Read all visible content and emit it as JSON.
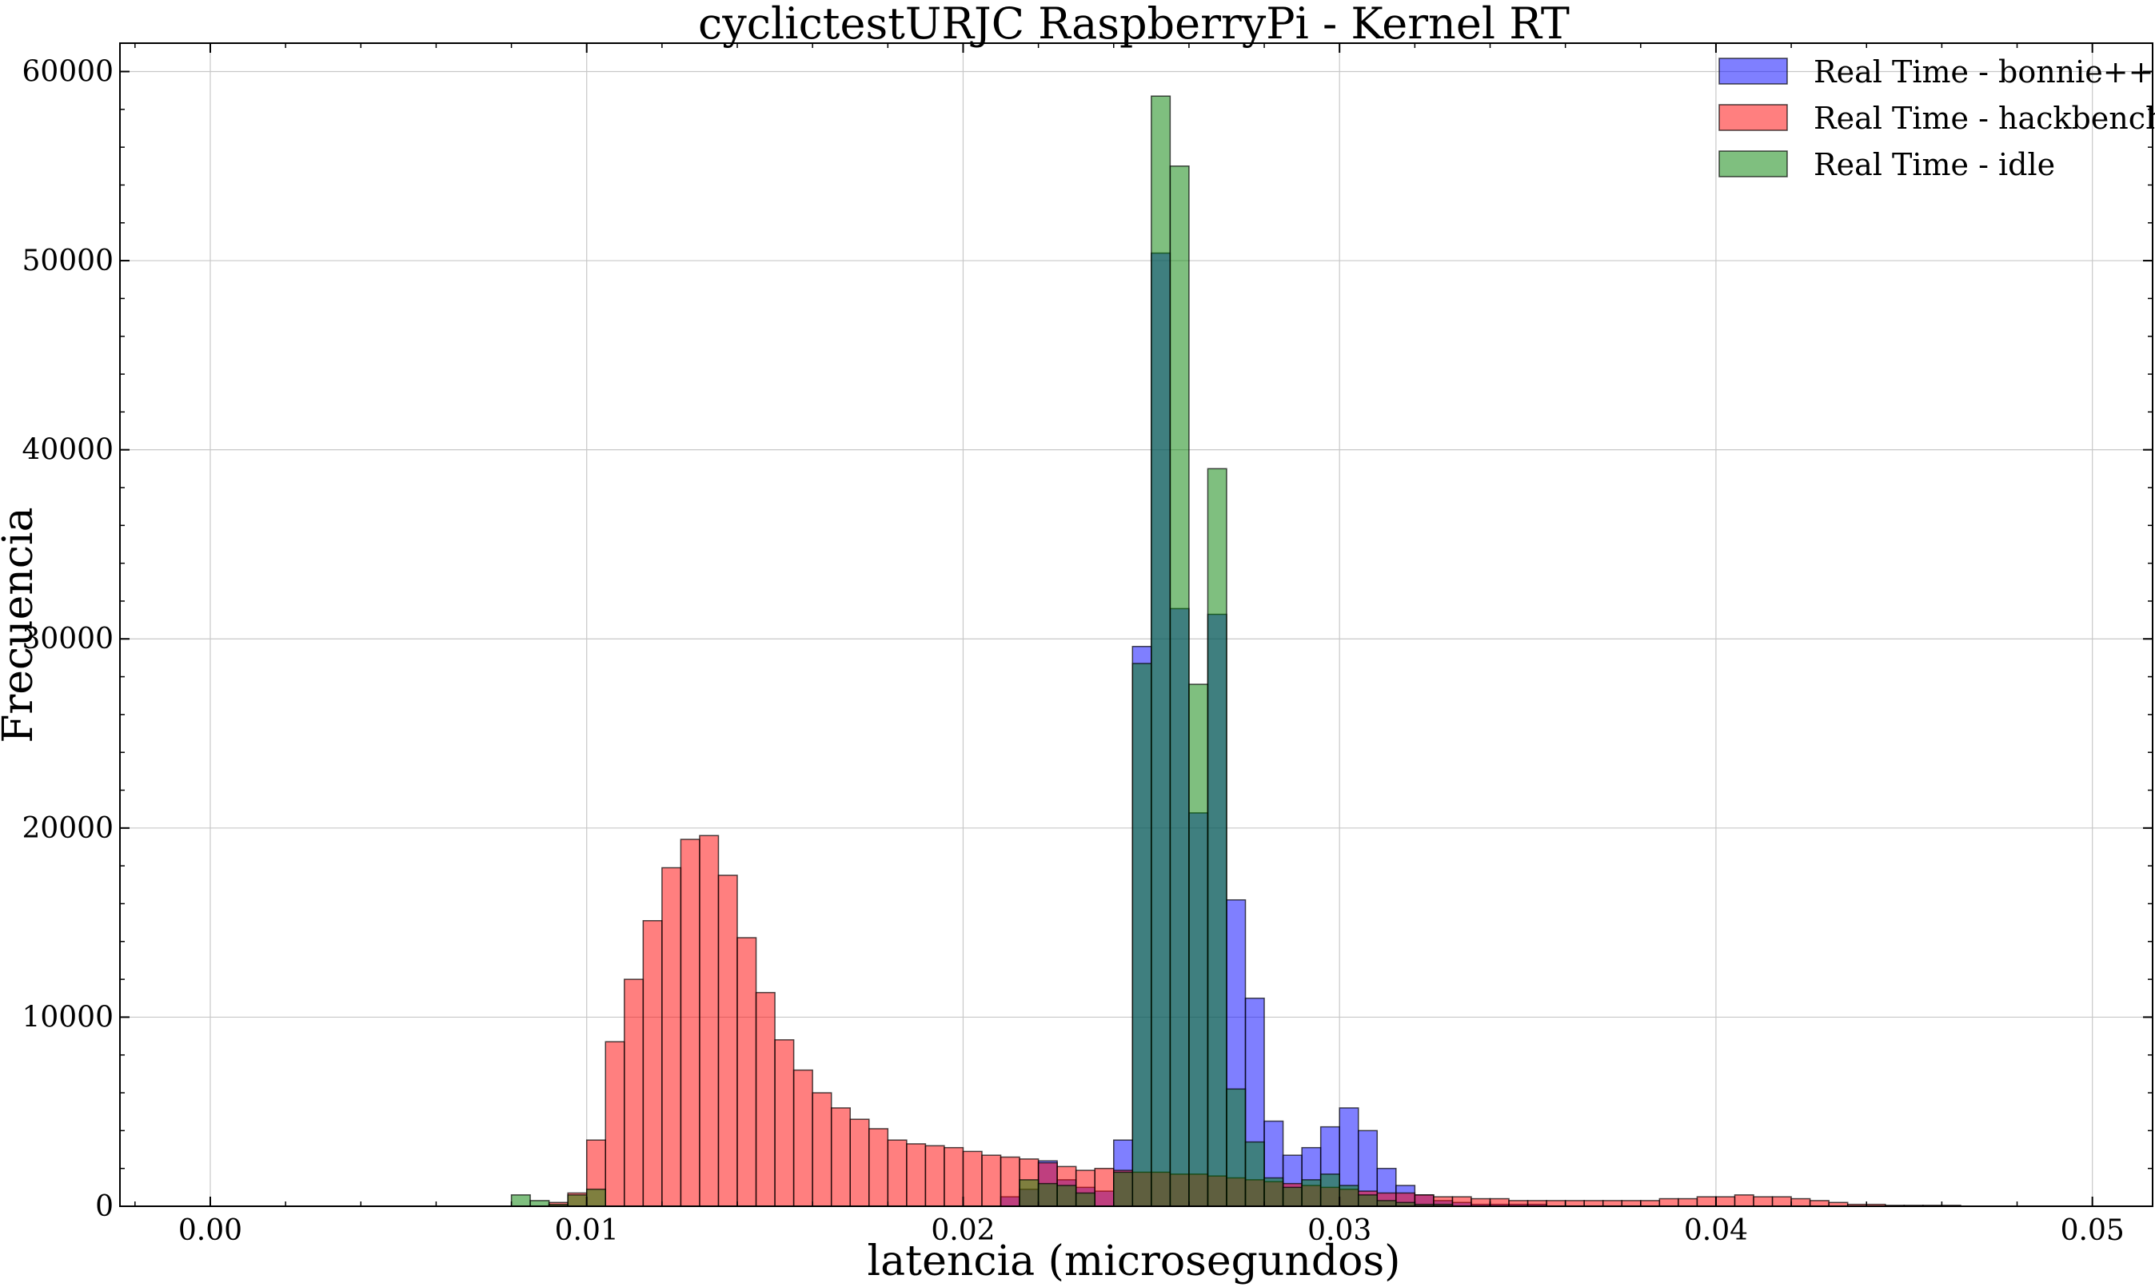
{
  "chart_data": {
    "type": "histogram",
    "title": "cyclictestURJC RaspberryPi - Kernel RT",
    "xlabel": "latencia (microsegundos)",
    "ylabel": "Frecuencia",
    "xlim": [
      -0.0024,
      0.0516
    ],
    "ylim": [
      0,
      61500
    ],
    "x_ticks": [
      0.0,
      0.01,
      0.02,
      0.03,
      0.04,
      0.05
    ],
    "x_tick_labels": [
      "0.00",
      "0.01",
      "0.02",
      "0.03",
      "0.04",
      "0.05"
    ],
    "y_ticks": [
      0,
      10000,
      20000,
      30000,
      40000,
      50000,
      60000
    ],
    "y_tick_labels": [
      "0",
      "10000",
      "20000",
      "30000",
      "40000",
      "50000",
      "60000"
    ],
    "grid": true,
    "legend_position": "top-right",
    "bin_width": 0.0005,
    "bin_start": 0.008,
    "series": [
      {
        "name": "Real Time - bonnie++",
        "color": "#0000ff",
        "alpha": 0.5,
        "values": [
          0,
          0,
          0,
          0,
          0,
          0,
          0,
          0,
          0,
          0,
          0,
          0,
          0,
          0,
          0,
          0,
          0,
          0,
          0,
          0,
          0,
          0,
          0,
          0,
          0,
          0,
          500,
          900,
          2400,
          1400,
          1000,
          800,
          3500,
          29600,
          50400,
          31600,
          20800,
          31300,
          16200,
          11000,
          4500,
          2700,
          3100,
          4200,
          5200,
          4000,
          2000,
          1100,
          600,
          300,
          200,
          100,
          100,
          100,
          100,
          0,
          0,
          0,
          0,
          0,
          0,
          0,
          0,
          0,
          0,
          0,
          0,
          0,
          0,
          0,
          0,
          0,
          0,
          0,
          0,
          0,
          0,
          0,
          0,
          0,
          0,
          0,
          0,
          0
        ]
      },
      {
        "name": "Real Time - hackbench",
        "color": "#ff0000",
        "alpha": 0.5,
        "values": [
          0,
          0,
          200,
          700,
          3500,
          8700,
          12000,
          15100,
          17900,
          19400,
          19600,
          17500,
          14200,
          11300,
          8800,
          7200,
          6000,
          5200,
          4600,
          4100,
          3500,
          3300,
          3200,
          3100,
          2900,
          2700,
          2600,
          2500,
          2300,
          2100,
          1900,
          2000,
          1900,
          1800,
          1800,
          1700,
          1700,
          1600,
          1500,
          1400,
          1300,
          1200,
          1100,
          1000,
          900,
          800,
          700,
          700,
          600,
          500,
          500,
          400,
          400,
          300,
          300,
          300,
          300,
          300,
          300,
          300,
          300,
          400,
          400,
          500,
          500,
          600,
          500,
          500,
          400,
          300,
          200,
          100,
          100,
          50,
          50,
          50,
          50,
          0,
          0,
          0,
          0,
          0,
          0,
          0,
          0
        ]
      },
      {
        "name": "Real Time - idle",
        "color": "#008000",
        "alpha": 0.5,
        "values": [
          600,
          300,
          100,
          600,
          900,
          0,
          0,
          0,
          0,
          0,
          0,
          0,
          0,
          0,
          0,
          0,
          0,
          0,
          0,
          0,
          0,
          0,
          0,
          0,
          0,
          0,
          0,
          1400,
          1200,
          1100,
          700,
          0,
          1800,
          28700,
          58700,
          55000,
          27600,
          39000,
          6200,
          3400,
          1500,
          1000,
          1400,
          1700,
          1100,
          600,
          300,
          200,
          100,
          100,
          0,
          0,
          0,
          0,
          0,
          0,
          0,
          0,
          0,
          0,
          0,
          0,
          0,
          0,
          0,
          0,
          0,
          0,
          0,
          0,
          0,
          0,
          0,
          0,
          0,
          0,
          0,
          0,
          0,
          0,
          0,
          0,
          0,
          0
        ]
      }
    ]
  }
}
